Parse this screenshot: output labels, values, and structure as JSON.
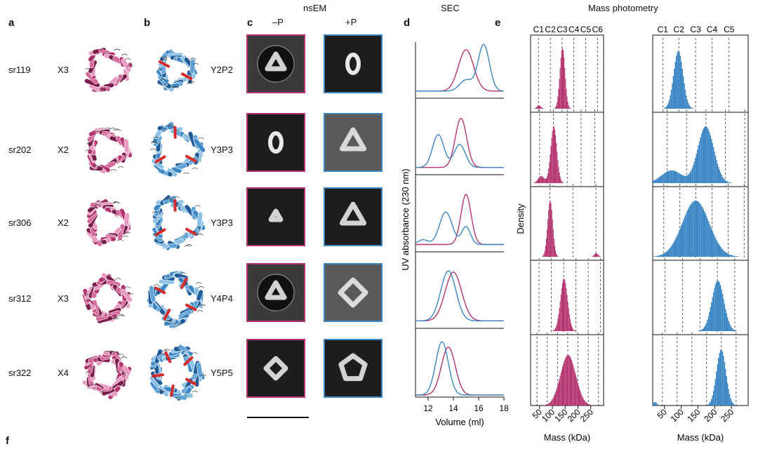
{
  "panel_letters": {
    "a": "a",
    "b": "b",
    "c": "c",
    "d": "d",
    "e": "e",
    "f": "f"
  },
  "headers": {
    "nsem": "nsEM",
    "sec": "SEC",
    "mp": "Mass photometry",
    "minus_p": "–P",
    "plus_p": "+P"
  },
  "colors": {
    "pink": "#b5346f",
    "pink_light": "#e99cc0",
    "pink_dark": "#7a1d4b",
    "blue": "#3b86c4",
    "blue_light": "#8cc2e6",
    "blue_dark": "#1f5c99",
    "red": "#d62b2b",
    "em_bg": "#1d1d1d"
  },
  "rows": [
    {
      "name": "sr119",
      "mult": "X3",
      "pair": "Y2P2"
    },
    {
      "name": "sr202",
      "mult": "X2",
      "pair": "Y3P3"
    },
    {
      "name": "sr306",
      "mult": "X2",
      "pair": "Y3P3"
    },
    {
      "name": "sr312",
      "mult": "X3",
      "pair": "Y4P4"
    },
    {
      "name": "sr322",
      "mult": "X4",
      "pair": "Y5P5"
    }
  ],
  "em_icons": {
    "minus": "em-class-average-icon",
    "plus": "em-class-average-icon"
  },
  "structure_icons": {
    "a": "protein-structure-icon",
    "b": "protein-structure-icon"
  },
  "chart_data": [
    {
      "type": "line",
      "title": "SEC",
      "xlabel": "Volume (ml)",
      "ylabel": "UV absorbance (230 nm)",
      "xlim": [
        11,
        18
      ],
      "xticks": [
        12,
        14,
        16,
        18
      ],
      "panels": [
        {
          "series": [
            {
              "color": "#b5346f",
              "peaks": [
                [
                  15.0,
                  0.82,
                  0.6
                ]
              ]
            },
            {
              "color": "#3b86c4",
              "peaks": [
                [
                  16.4,
                  0.92,
                  0.45
                ],
                [
                  15.0,
                  0.22,
                  0.5
                ]
              ]
            }
          ]
        },
        {
          "series": [
            {
              "color": "#b5346f",
              "peaks": [
                [
                  14.6,
                  0.9,
                  0.45
                ]
              ]
            },
            {
              "color": "#3b86c4",
              "peaks": [
                [
                  12.8,
                  0.6,
                  0.45
                ],
                [
                  14.5,
                  0.42,
                  0.45
                ]
              ]
            }
          ]
        },
        {
          "series": [
            {
              "color": "#b5346f",
              "peaks": [
                [
                  15.0,
                  0.85,
                  0.4
                ]
              ]
            },
            {
              "color": "#3b86c4",
              "peaks": [
                [
                  13.4,
                  0.55,
                  0.5
                ],
                [
                  15.0,
                  0.3,
                  0.35
                ],
                [
                  11.6,
                  0.08,
                  0.4
                ]
              ]
            }
          ]
        },
        {
          "series": [
            {
              "color": "#b5346f",
              "peaks": [
                [
                  14.0,
                  0.78,
                  0.65
                ]
              ]
            },
            {
              "color": "#3b86c4",
              "peaks": [
                [
                  13.6,
                  0.8,
                  0.6
                ]
              ]
            }
          ]
        },
        {
          "series": [
            {
              "color": "#b5346f",
              "peaks": [
                [
                  13.6,
                  0.72,
                  0.55
                ]
              ]
            },
            {
              "color": "#3b86c4",
              "peaks": [
                [
                  13.1,
                  0.8,
                  0.5
                ]
              ]
            }
          ]
        }
      ]
    },
    {
      "type": "bar",
      "title": "Mass photometry",
      "xlabel": "Mass (kDa)",
      "ylabel": "Density",
      "columns": [
        {
          "color": "#b5346f",
          "xlim": [
            15,
            300
          ],
          "xticks": [
            50,
            100,
            150,
            200,
            250
          ],
          "topLabels": [
            "C1",
            "C2",
            "C3",
            "C4",
            "C5",
            "C6"
          ],
          "topPositions": [
            46,
            92,
            138,
            184,
            230,
            276
          ],
          "panels": [
            {
              "dashed": [
                46,
                92,
                138,
                184,
                230,
                276
              ],
              "peaks": [
                [
                  138,
                  0.9,
                  10
                ],
                [
                  46,
                  0.05,
                  8
                ]
              ]
            },
            {
              "dashed": [
                50,
                104,
                158,
                212,
                266
              ],
              "peaks": [
                [
                  104,
                  0.8,
                  12
                ],
                [
                  55,
                  0.1,
                  12
                ]
              ]
            },
            {
              "dashed": [
                90,
                180,
                270
              ],
              "peaks": [
                [
                  90,
                  0.8,
                  10
                ],
                [
                  270,
                  0.05,
                  8
                ]
              ]
            },
            {
              "dashed": [
                48,
                96,
                144,
                192,
                240,
                288
              ],
              "peaks": [
                [
                  144,
                  0.75,
                  14
                ]
              ]
            },
            {
              "dashed": [
                40,
                80,
                120,
                160,
                200,
                240,
                280
              ],
              "peaks": [
                [
                  160,
                  0.72,
                  30
                ]
              ]
            }
          ]
        },
        {
          "color": "#3b86c4",
          "xlim": [
            15,
            300
          ],
          "xticks": [
            50,
            100,
            150,
            200,
            250
          ],
          "topLabels": [
            "C1",
            "C2",
            "C3",
            "C4",
            "C5"
          ],
          "topPositions": [
            45,
            93,
            143,
            192,
            243
          ],
          "panels": [
            {
              "dashed": [
                45,
                93,
                143,
                192,
                243
              ],
              "peaks": [
                [
                  90,
                  0.85,
                  14
                ]
              ]
            },
            {
              "dashed": [
                58,
                116,
                174,
                232,
                290
              ],
              "peaks": [
                [
                  172,
                  0.8,
                  24
                ],
                [
                  70,
                  0.18,
                  30
                ]
              ]
            },
            {
              "dashed": [
                48,
                96,
                144,
                192,
                240,
                288
              ],
              "peaks": [
                [
                  142,
                  0.8,
                  40
                ]
              ]
            },
            {
              "dashed": [
                52,
                104,
                156,
                208,
                260
              ],
              "peaks": [
                [
                  208,
                  0.72,
                  18
                ]
              ]
            },
            {
              "dashed": [
                44,
                88,
                132,
                176,
                220,
                264
              ],
              "peaks": [
                [
                  218,
                  0.8,
                  14
                ],
                [
                  20,
                  0.05,
                  6
                ]
              ]
            }
          ]
        }
      ]
    }
  ]
}
